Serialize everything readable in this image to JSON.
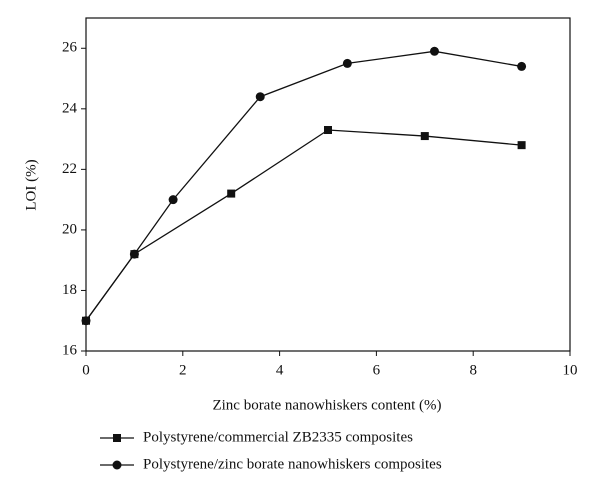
{
  "chart_data": {
    "type": "line",
    "x_label": "Zinc borate nanowhiskers content (%)",
    "y_label": "LOI (%)",
    "xlim": [
      0,
      10
    ],
    "xticks": [
      0,
      2,
      4,
      6,
      8,
      10
    ],
    "ylim": [
      16,
      27
    ],
    "yticks": [
      16,
      18,
      20,
      22,
      24,
      26
    ],
    "series": [
      {
        "name": "Polystyrene/commercial ZB2335 composites",
        "color": "#111111",
        "marker": "square",
        "x": [
          0,
          1,
          3,
          5,
          7,
          9
        ],
        "values": [
          17,
          19.2,
          21.2,
          23.3,
          23.1,
          22.8
        ]
      },
      {
        "name": "Polystyrene/zinc borate nanowhiskers composites",
        "color": "#111111",
        "marker": "circle",
        "x": [
          0,
          1,
          1.8,
          3.6,
          5.4,
          7.2,
          9
        ],
        "values": [
          17,
          19.2,
          21,
          24.4,
          25.5,
          25.9,
          25.4
        ]
      }
    ]
  }
}
